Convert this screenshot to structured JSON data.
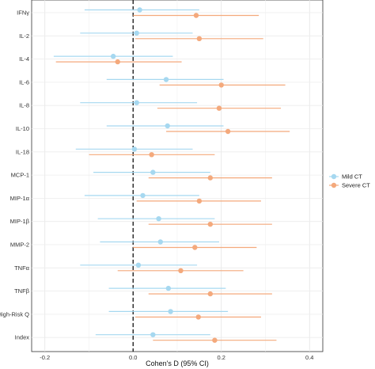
{
  "chart_data": {
    "type": "forest",
    "title": "",
    "xlabel": "Cohen's D (95% CI)",
    "ylabel": "",
    "xlim": [
      -0.23,
      0.43
    ],
    "xticks": [
      "-0.2",
      "0.0",
      "0.2",
      "0.4"
    ],
    "xtick_values": [
      -0.2,
      0.0,
      0.2,
      0.4
    ],
    "reference_line": 0,
    "grid": true,
    "legend_position": "right",
    "categories": [
      "IFNγ",
      "IL-2",
      "IL-4",
      "IL-6",
      "IL-8",
      "IL-10",
      "IL-18",
      "MCP-1",
      "MIP-1α",
      "MIP-1β",
      "MMP-2",
      "TNFα",
      "TNFβ",
      "High-Risk Q",
      "Index"
    ],
    "series": [
      {
        "name": "Mild CT",
        "color": "#a6d8f0",
        "estimate": [
          0.015,
          0.008,
          -0.045,
          0.075,
          0.008,
          0.078,
          0.003,
          0.045,
          0.022,
          0.058,
          0.062,
          0.012,
          0.08,
          0.085,
          0.045
        ],
        "lower": [
          -0.11,
          -0.12,
          -0.18,
          -0.06,
          -0.12,
          -0.06,
          -0.13,
          -0.09,
          -0.11,
          -0.08,
          -0.075,
          -0.12,
          -0.055,
          -0.055,
          -0.085
        ],
        "upper": [
          0.15,
          0.135,
          0.09,
          0.205,
          0.145,
          0.205,
          0.135,
          0.175,
          0.15,
          0.185,
          0.195,
          0.145,
          0.21,
          0.215,
          0.175
        ]
      },
      {
        "name": "Severe CT",
        "color": "#f4a97c",
        "estimate": [
          0.143,
          0.15,
          -0.035,
          0.2,
          0.195,
          0.215,
          0.042,
          0.175,
          0.15,
          0.175,
          0.14,
          0.108,
          0.175,
          0.148,
          0.185
        ],
        "lower": [
          0.0,
          0.005,
          -0.175,
          0.06,
          0.055,
          0.075,
          -0.1,
          0.035,
          0.008,
          0.035,
          0.0,
          -0.035,
          0.035,
          0.005,
          0.045
        ],
        "upper": [
          0.285,
          0.295,
          0.11,
          0.345,
          0.335,
          0.355,
          0.185,
          0.315,
          0.29,
          0.315,
          0.28,
          0.25,
          0.315,
          0.29,
          0.325
        ]
      }
    ]
  }
}
